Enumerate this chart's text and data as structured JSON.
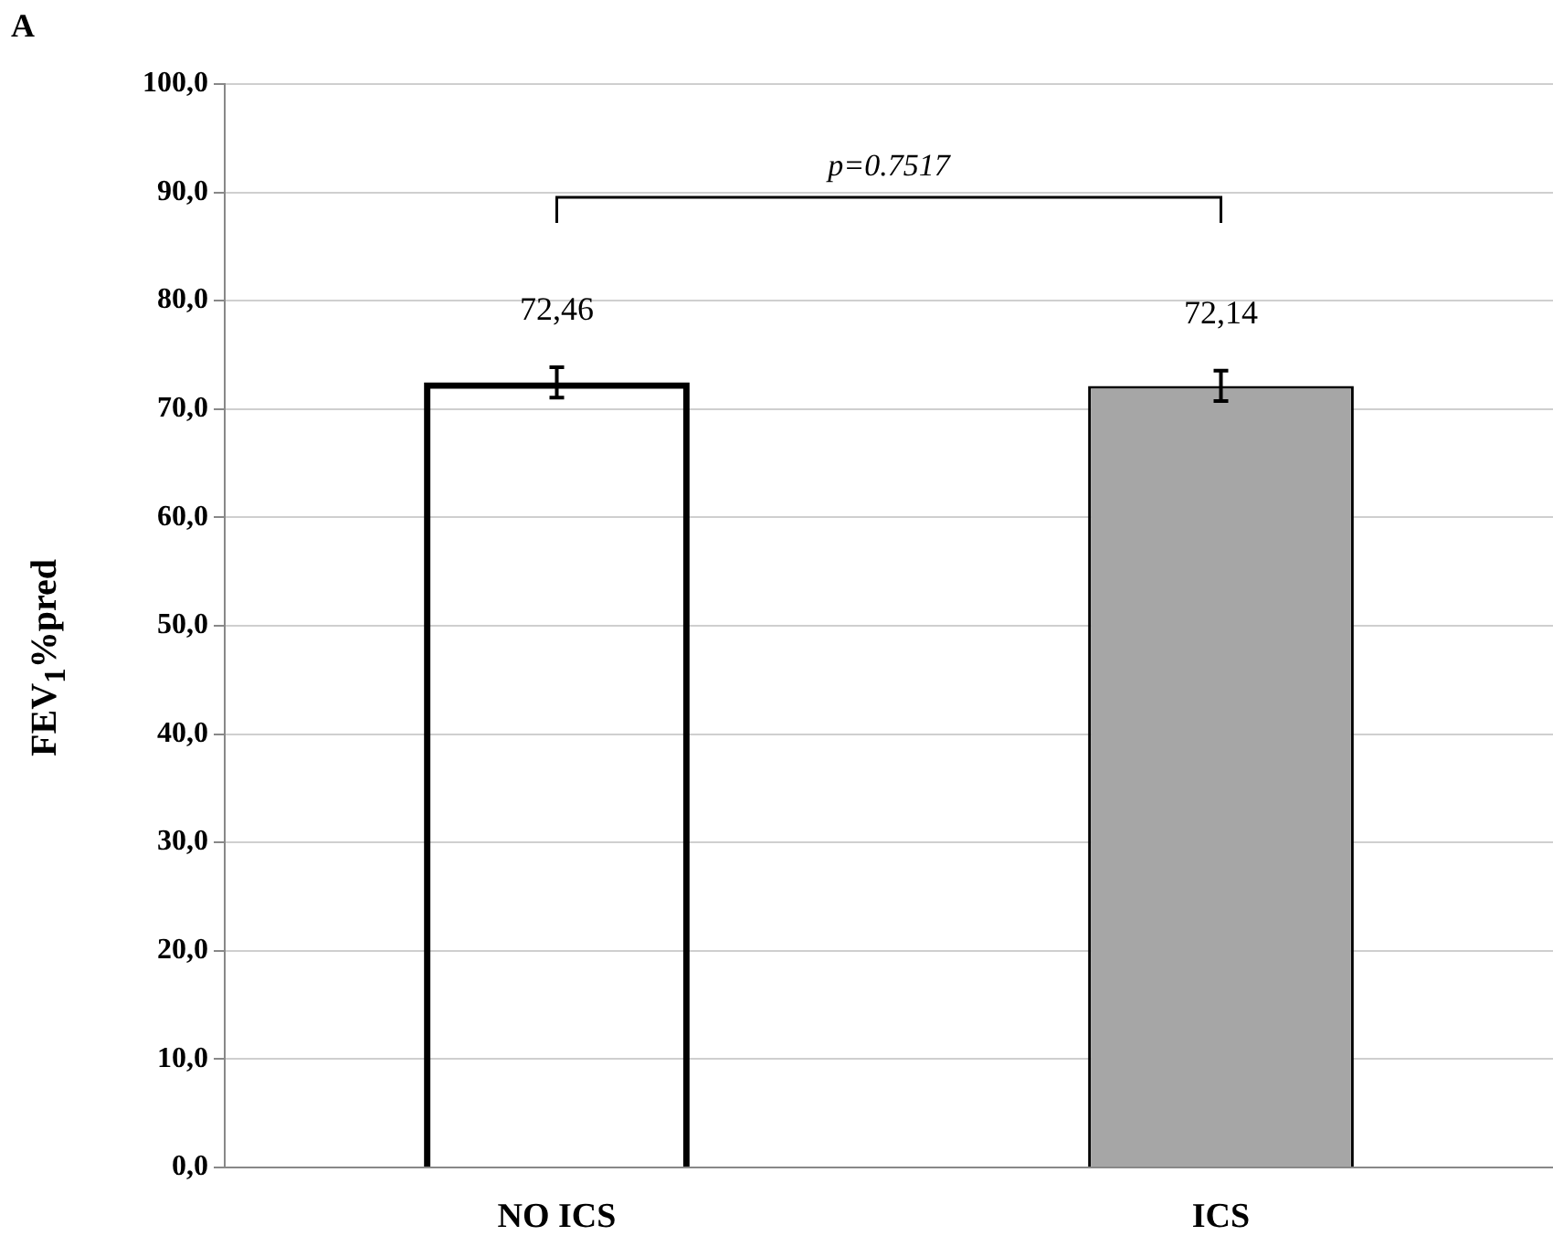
{
  "chart_data": {
    "type": "bar",
    "title": "A",
    "ylabel": "FEV$_{1}$%pred",
    "categories": [
      "NO ICS",
      "ICS"
    ],
    "values": [
      72.46,
      72.14
    ],
    "colors": [
      "#000000",
      "#a6a6a6"
    ],
    "errors": [
      1.4,
      1.4
    ],
    "value_labels": [
      "72,46",
      "72,14"
    ],
    "ylim": [
      0,
      100
    ],
    "yticks": [
      {
        "value": 0,
        "label": "0,0"
      },
      {
        "value": 10,
        "label": "10,0"
      },
      {
        "value": 20,
        "label": "20,0"
      },
      {
        "value": 30,
        "label": "30,0"
      },
      {
        "value": 40,
        "label": "40,0"
      },
      {
        "value": 50,
        "label": "50,0"
      },
      {
        "value": 60,
        "label": "60,0"
      },
      {
        "value": 70,
        "label": "70,0"
      },
      {
        "value": 80,
        "label": "80,0"
      },
      {
        "value": 90,
        "label": "90,0"
      },
      {
        "value": 100,
        "label": "100,0"
      }
    ],
    "grid": "y",
    "annotations": [
      "p=0.7517"
    ]
  }
}
